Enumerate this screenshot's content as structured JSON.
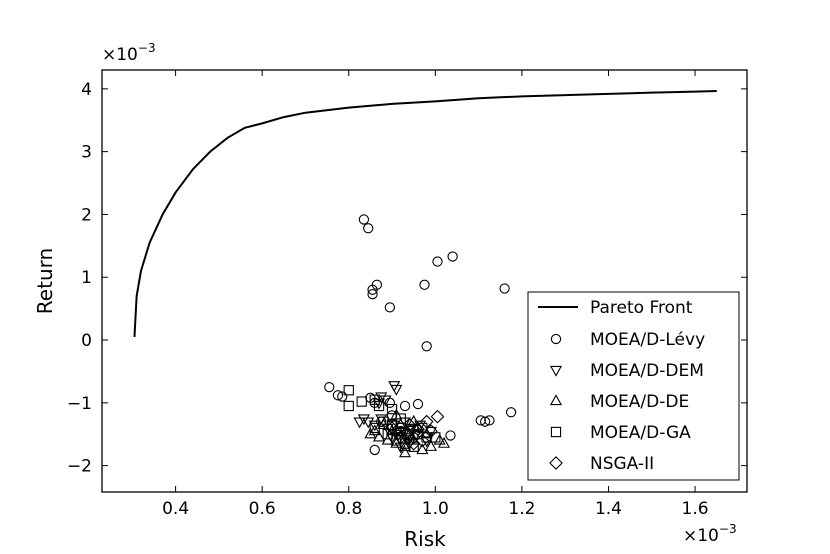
{
  "chart_data": {
    "type": "scatter",
    "xlabel": "Risk",
    "ylabel": "Return",
    "x_multiplier": "×10",
    "x_multiplier_exp": "−3",
    "y_multiplier": "×10",
    "y_multiplier_exp": "−3",
    "xlim": [
      0.23,
      1.72
    ],
    "ylim": [
      -2.42,
      4.3
    ],
    "xticks": [
      0.4,
      0.6,
      0.8,
      1.0,
      1.2,
      1.4,
      1.6
    ],
    "xtick_labels": [
      "0.4",
      "0.6",
      "0.8",
      "1.0",
      "1.2",
      "1.4",
      "1.6"
    ],
    "yticks": [
      -2,
      -1,
      0,
      1,
      2,
      3,
      4
    ],
    "ytick_labels": [
      "−2",
      "−1",
      "0",
      "1",
      "2",
      "3",
      "4"
    ],
    "legend_position": "bottom-right",
    "series": [
      {
        "name": "Pareto Front",
        "kind": "line",
        "x": [
          0.305,
          0.31,
          0.32,
          0.34,
          0.37,
          0.4,
          0.44,
          0.48,
          0.52,
          0.56,
          0.6,
          0.65,
          0.7,
          0.8,
          0.9,
          1.0,
          1.1,
          1.2,
          1.3,
          1.4,
          1.5,
          1.6,
          1.65
        ],
        "y": [
          0.05,
          0.7,
          1.1,
          1.55,
          2.0,
          2.35,
          2.72,
          3.0,
          3.22,
          3.38,
          3.45,
          3.55,
          3.62,
          3.7,
          3.76,
          3.8,
          3.85,
          3.88,
          3.9,
          3.92,
          3.94,
          3.955,
          3.965
        ]
      },
      {
        "name": "MOEA/D-Lévy",
        "marker": "circle",
        "points": [
          [
            0.835,
            1.92
          ],
          [
            0.845,
            1.78
          ],
          [
            0.855,
            0.8
          ],
          [
            0.855,
            0.73
          ],
          [
            0.865,
            0.88
          ],
          [
            0.895,
            0.52
          ],
          [
            0.975,
            0.88
          ],
          [
            1.005,
            1.25
          ],
          [
            1.04,
            1.33
          ],
          [
            1.16,
            0.82
          ],
          [
            0.98,
            -0.1
          ],
          [
            0.755,
            -0.75
          ],
          [
            0.775,
            -0.88
          ],
          [
            0.785,
            -0.9
          ],
          [
            0.85,
            -0.92
          ],
          [
            0.86,
            -1.0
          ],
          [
            0.895,
            -1.0
          ],
          [
            0.93,
            -1.05
          ],
          [
            0.96,
            -1.02
          ],
          [
            1.035,
            -1.52
          ],
          [
            1.105,
            -1.28
          ],
          [
            1.115,
            -1.3
          ],
          [
            1.125,
            -1.28
          ],
          [
            1.175,
            -1.15
          ],
          [
            0.86,
            -1.75
          ],
          [
            0.875,
            -1.3
          ],
          [
            0.9,
            -1.2
          ],
          [
            0.92,
            -1.45
          ]
        ]
      },
      {
        "name": "MOEA/D-DEM",
        "marker": "triangle-down",
        "points": [
          [
            0.905,
            -0.72
          ],
          [
            0.91,
            -0.78
          ],
          [
            0.875,
            -0.9
          ],
          [
            0.885,
            -0.95
          ],
          [
            0.87,
            -1.0
          ],
          [
            0.825,
            -1.3
          ],
          [
            0.835,
            -1.25
          ],
          [
            0.845,
            -1.3
          ],
          [
            0.86,
            -1.35
          ],
          [
            0.875,
            -1.25
          ],
          [
            0.89,
            -1.4
          ],
          [
            0.905,
            -1.35
          ],
          [
            0.915,
            -1.5
          ],
          [
            0.925,
            -1.45
          ],
          [
            0.935,
            -1.55
          ],
          [
            0.945,
            -1.4
          ],
          [
            0.955,
            -1.5
          ],
          [
            0.965,
            -1.35
          ],
          [
            0.98,
            -1.6
          ],
          [
            0.99,
            -1.45
          ],
          [
            0.92,
            -1.7
          ],
          [
            0.94,
            -1.65
          ],
          [
            0.9,
            -1.55
          ],
          [
            0.93,
            -1.3
          ]
        ]
      },
      {
        "name": "MOEA/D-DE",
        "marker": "triangle-up",
        "points": [
          [
            0.85,
            -1.5
          ],
          [
            0.87,
            -1.55
          ],
          [
            0.89,
            -1.6
          ],
          [
            0.91,
            -1.65
          ],
          [
            0.93,
            -1.7
          ],
          [
            0.95,
            -1.6
          ],
          [
            0.97,
            -1.75
          ],
          [
            0.99,
            -1.7
          ],
          [
            1.01,
            -1.6
          ],
          [
            1.02,
            -1.65
          ],
          [
            0.93,
            -1.8
          ],
          [
            0.96,
            -1.4
          ],
          [
            0.9,
            -1.45
          ],
          [
            0.88,
            -1.35
          ],
          [
            0.94,
            -1.5
          ],
          [
            0.92,
            -1.35
          ],
          [
            0.98,
            -1.5
          ],
          [
            0.86,
            -1.45
          ],
          [
            0.95,
            -1.3
          ],
          [
            0.91,
            -1.2
          ]
        ]
      },
      {
        "name": "MOEA/D-GA",
        "marker": "square",
        "points": [
          [
            0.8,
            -0.8
          ],
          [
            0.8,
            -1.05
          ],
          [
            0.83,
            -0.98
          ],
          [
            0.86,
            -0.95
          ],
          [
            0.87,
            -1.05
          ],
          [
            0.9,
            -1.1
          ],
          [
            0.88,
            -1.3
          ],
          [
            0.9,
            -1.35
          ],
          [
            0.92,
            -1.4
          ],
          [
            0.94,
            -1.45
          ],
          [
            0.96,
            -1.5
          ],
          [
            0.98,
            -1.55
          ],
          [
            1.0,
            -1.55
          ],
          [
            0.91,
            -1.6
          ],
          [
            0.93,
            -1.65
          ],
          [
            0.95,
            -1.7
          ],
          [
            0.89,
            -1.5
          ],
          [
            0.97,
            -1.4
          ],
          [
            0.92,
            -1.25
          ],
          [
            0.86,
            -1.4
          ]
        ]
      },
      {
        "name": "NSGA-II",
        "marker": "diamond",
        "points": [
          [
            1.005,
            -1.22
          ],
          [
            0.99,
            -1.45
          ],
          [
            0.97,
            -1.6
          ],
          [
            0.95,
            -1.55
          ],
          [
            0.93,
            -1.5
          ],
          [
            0.91,
            -1.45
          ],
          [
            0.94,
            -1.35
          ],
          [
            0.96,
            -1.42
          ],
          [
            0.92,
            -1.55
          ],
          [
            0.98,
            -1.3
          ],
          [
            0.9,
            -1.4
          ],
          [
            0.95,
            -1.65
          ]
        ]
      }
    ]
  }
}
